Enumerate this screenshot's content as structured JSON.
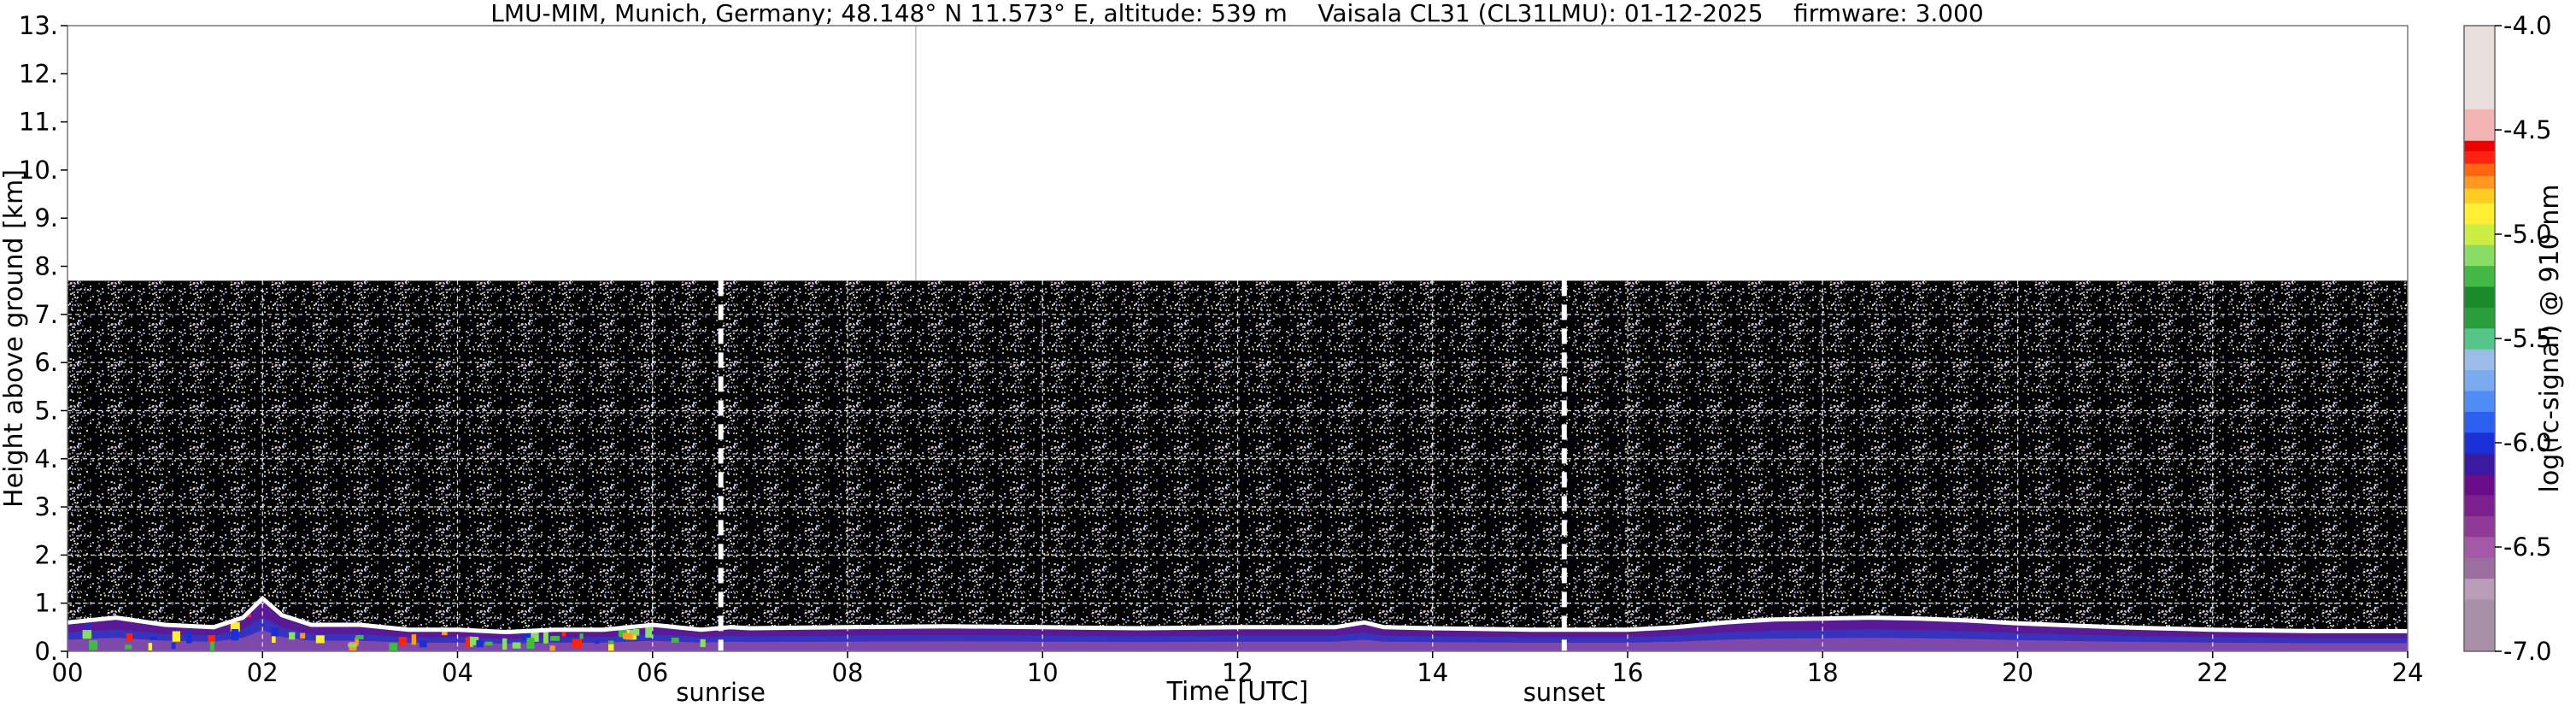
{
  "chart_data": {
    "type": "heatmap",
    "title": "LMU-MIM, Munich, Germany; 48.148° N 11.573° E, altitude: 539 m    Vaisala CL31 (CL31LMU): 01-12-2025    firmware: 3.000",
    "xlabel": "Time [UTC]",
    "ylabel": "Height above ground [km]",
    "xlim": [
      0,
      24
    ],
    "ylim": [
      0,
      13
    ],
    "x_ticks": [
      0,
      2,
      4,
      6,
      8,
      10,
      12,
      14,
      16,
      18,
      20,
      22,
      24
    ],
    "x_tick_labels": [
      "00",
      "02",
      "04",
      "06",
      "08",
      "10",
      "12",
      "14",
      "16",
      "18",
      "20",
      "22",
      "24"
    ],
    "y_ticks": [
      0,
      1,
      2,
      3,
      4,
      5,
      6,
      7,
      8,
      9,
      10,
      11,
      12,
      13
    ],
    "y_tick_labels": [
      "0.",
      "1.",
      "2.",
      "3.",
      "4.",
      "5.",
      "6.",
      "7.",
      "8.",
      "9.",
      "10.",
      "11.",
      "12.",
      "13."
    ],
    "grid": "dashed white, lower data region",
    "data_top_km": 7.7,
    "markers": [
      {
        "label": "sunrise",
        "time_utc": 6.7
      },
      {
        "label": "sunset",
        "time_utc": 15.35
      }
    ],
    "vertical_reference_line_time_utc": 8.7,
    "colorbar": {
      "label": "log(rc-signal) @ 910 nm",
      "range": [
        -7.0,
        -4.0
      ],
      "ticks": [
        -4.0,
        -4.5,
        -5.0,
        -5.5,
        -6.0,
        -6.5,
        -7.0
      ],
      "tick_labels": [
        "-4.0",
        "-4.5",
        "-5.0",
        "-5.5",
        "-6.0",
        "-6.5",
        "-7.0"
      ],
      "colors": [
        "#a88fa8",
        "#b89cb8",
        "#9a6e9e",
        "#a458a8",
        "#8f3a96",
        "#7d1f8f",
        "#6a0d8a",
        "#3a1aa0",
        "#1b2fd6",
        "#2a5ff0",
        "#4f8cf5",
        "#7aaaf0",
        "#9bbce8",
        "#55c58a",
        "#2a9e3a",
        "#1a8a2a",
        "#44b844",
        "#88dd66",
        "#ccee44",
        "#ffee33",
        "#ffcc22",
        "#ff9922",
        "#ff6611",
        "#ff2211",
        "#ee0000",
        "#f2b3b3",
        "#e8dede"
      ],
      "color_levels": [
        -7.0,
        -6.75,
        -6.65,
        -6.55,
        -6.45,
        -6.35,
        -6.25,
        -6.15,
        -6.05,
        -5.95,
        -5.85,
        -5.75,
        -5.65,
        -5.55,
        -5.45,
        -5.35,
        -5.25,
        -5.15,
        -5.05,
        -4.95,
        -4.85,
        -4.78,
        -4.72,
        -4.66,
        -4.6,
        -4.55,
        -4.4
      ]
    },
    "boundary_layer_top_km": {
      "time_utc": [
        0,
        0.5,
        1,
        1.5,
        1.8,
        2.0,
        2.2,
        2.5,
        3,
        3.5,
        4,
        4.5,
        5,
        5.5,
        6,
        6.5,
        6.8,
        7,
        8,
        9,
        10,
        11,
        12,
        13,
        13.3,
        13.5,
        14,
        15,
        16,
        16.5,
        17,
        17.5,
        18,
        18.5,
        19,
        19.5,
        20,
        21,
        22,
        23,
        24
      ],
      "height_km": [
        0.6,
        0.7,
        0.55,
        0.5,
        0.7,
        1.1,
        0.75,
        0.55,
        0.55,
        0.45,
        0.45,
        0.4,
        0.45,
        0.45,
        0.55,
        0.45,
        0.5,
        0.48,
        0.5,
        0.52,
        0.5,
        0.48,
        0.5,
        0.5,
        0.6,
        0.5,
        0.48,
        0.45,
        0.45,
        0.5,
        0.6,
        0.66,
        0.68,
        0.7,
        0.68,
        0.64,
        0.58,
        0.5,
        0.45,
        0.42,
        0.42
      ]
    }
  }
}
